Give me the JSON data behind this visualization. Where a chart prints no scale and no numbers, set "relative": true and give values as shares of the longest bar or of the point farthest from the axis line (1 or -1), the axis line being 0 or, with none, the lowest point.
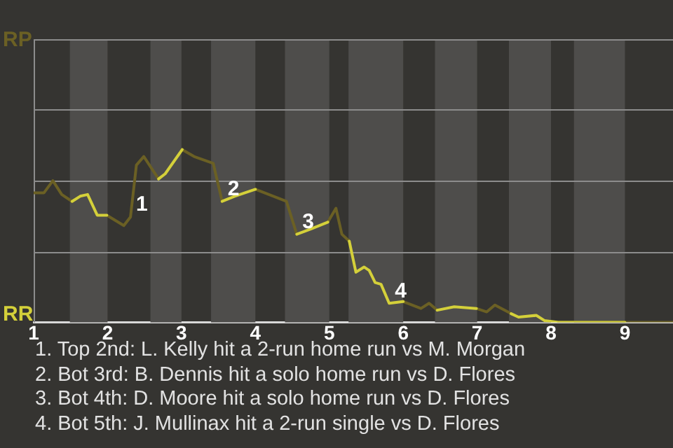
{
  "chart_data": {
    "type": "line",
    "relative": true,
    "marker": "none",
    "legend": false,
    "x": [
      1,
      1.14,
      1.26,
      1.38,
      1.52,
      1.63,
      1.73,
      1.86,
      1.99,
      2.22,
      2.31,
      2.39,
      2.49,
      2.69,
      2.78,
      3.01,
      3.17,
      3.43,
      3.55,
      3.72,
      4,
      4.42,
      4.56,
      4.75,
      4.98,
      5.09,
      5.17,
      5.27,
      5.36,
      5.47,
      5.54,
      5.62,
      5.7,
      5.81,
      6,
      6.24,
      6.35,
      6.46,
      6.69,
      6.99,
      7.13,
      7.24,
      7.46,
      7.56,
      7.8,
      7.91,
      8.1,
      8.31,
      9,
      9.65
    ],
    "xlim": [
      1,
      9.65
    ],
    "xticks": [
      1,
      2,
      3,
      4,
      5,
      6,
      7,
      8,
      9
    ],
    "series": [
      {
        "color": "#6b6024",
        "values": [
          0.75,
          0.75,
          0.82,
          0.74,
          0.7,
          null,
          null,
          null,
          0.62,
          0.56,
          0.61,
          0.91,
          0.96,
          0.83,
          null,
          1,
          0.96,
          0.92,
          0.7,
          null,
          0.77,
          0.7,
          0.51,
          null,
          0.58,
          0.66,
          0.51,
          0.47,
          null,
          null,
          null,
          null,
          null,
          null,
          0.12,
          0.08,
          0.11,
          0.07,
          null,
          0.08,
          0.06,
          0.1,
          0.05,
          null,
          null,
          null,
          0,
          0,
          0,
          0
        ]
      },
      {
        "color": "#d4d03a",
        "values": [
          null,
          null,
          null,
          null,
          0.7,
          0.73,
          0.74,
          0.62,
          0.62,
          null,
          null,
          null,
          null,
          0.83,
          0.86,
          1,
          null,
          null,
          0.7,
          0.73,
          0.77,
          null,
          0.51,
          0.54,
          0.58,
          null,
          null,
          0.47,
          0.29,
          0.32,
          0.3,
          0.23,
          0.22,
          0.11,
          0.12,
          null,
          null,
          0.07,
          0.09,
          0.08,
          null,
          null,
          0.05,
          0.03,
          0.04,
          0.01,
          0,
          0,
          0,
          null
        ]
      }
    ],
    "ref_lines": [
      {
        "axis": "y",
        "value": 0.41,
        "color": "#8c8c8c"
      },
      {
        "axis": "y",
        "value": 0.82,
        "color": "#8c8c8c"
      },
      {
        "axis": "y",
        "value": 1.23,
        "color": "#8c8c8c"
      }
    ],
    "bands": [
      {
        "axis": "x",
        "from": 1.49,
        "to": 2,
        "color": "#4e4d4b"
      },
      {
        "axis": "x",
        "from": 2.58,
        "to": 3,
        "color": "#4e4d4b"
      },
      {
        "axis": "x",
        "from": 3.4,
        "to": 4,
        "color": "#4e4d4b"
      },
      {
        "axis": "x",
        "from": 4.4,
        "to": 5,
        "color": "#4e4d4b"
      },
      {
        "axis": "x",
        "from": 5.26,
        "to": 6,
        "color": "#4e4d4b"
      },
      {
        "axis": "x",
        "from": 6.43,
        "to": 7,
        "color": "#4e4d4b"
      },
      {
        "axis": "x",
        "from": 7.43,
        "to": 8,
        "color": "#4e4d4b"
      },
      {
        "axis": "x",
        "from": 8.31,
        "to": 9,
        "color": "#4e4d4b"
      }
    ],
    "annotations": [
      "RP",
      "RR",
      {
        "text": "1",
        "x": 2.31,
        "y": 0.61
      },
      {
        "text": "2",
        "x": 3.55,
        "y": 0.7
      },
      {
        "text": "3",
        "x": 4.56,
        "y": 0.51
      },
      {
        "text": "4",
        "x": 5.81,
        "y": 0.11
      },
      "1. Top 2nd: L. Kelly hit a 2-run home run vs M. Morgan",
      "2. Bot 3rd: B. Dennis hit a solo home run vs D. Flores",
      "3. Bot 4th: D. Moore hit a solo home run vs D. Flores",
      "4. Bot 5th: J. Mullinax hit a 2-run single vs D. Flores"
    ]
  }
}
